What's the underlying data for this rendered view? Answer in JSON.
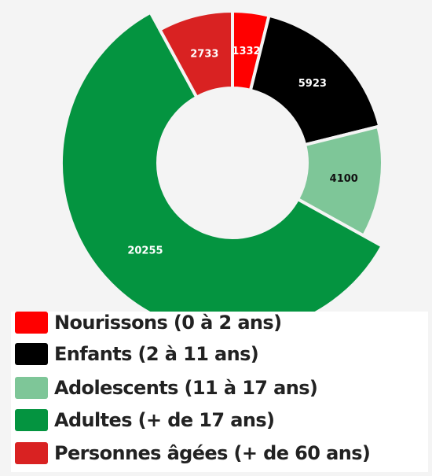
{
  "chart_data": {
    "type": "pie",
    "categories": [
      "Nourissons (0 à 2 ans)",
      "Enfants (2 à 11 ans)",
      "Adolescents (11 à 17 ans)",
      "Adultes (+ de 17 ans)",
      "Personnes âgées (+ de 60 ans)"
    ],
    "values": [
      1332,
      5923,
      4100,
      20255,
      2733
    ],
    "colors": [
      "#ff0000",
      "#000000",
      "#7ec698",
      "#049440",
      "#d92222"
    ],
    "label_colors": [
      "#ffffff",
      "#ffffff",
      "#111111",
      "#ffffff",
      "#ffffff"
    ],
    "data_labels": [
      "1332",
      "5923",
      "4100",
      "20255",
      "2733"
    ],
    "legend": "bottom",
    "donut": true
  }
}
